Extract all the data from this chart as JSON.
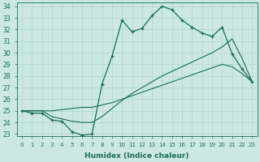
{
  "xlabel": "Humidex (Indice chaleur)",
  "bg_color": "#cce8e4",
  "grid_color": "#b0d4d0",
  "line_color": "#1a6b5a",
  "xlim": [
    -0.5,
    23.5
  ],
  "ylim": [
    22.8,
    34.3
  ],
  "xticks": [
    0,
    1,
    2,
    3,
    4,
    5,
    6,
    7,
    8,
    9,
    10,
    11,
    12,
    13,
    14,
    15,
    16,
    17,
    18,
    19,
    20,
    21,
    22,
    23
  ],
  "yticks": [
    23,
    24,
    25,
    26,
    27,
    28,
    29,
    30,
    31,
    32,
    33,
    34
  ],
  "line1_x": [
    0,
    1,
    2,
    3,
    4,
    5,
    6,
    7,
    8,
    9,
    10,
    11,
    12,
    13,
    14,
    15,
    16,
    17,
    18,
    19,
    20,
    21,
    22,
    23
  ],
  "line1_y": [
    25.0,
    24.8,
    24.8,
    24.2,
    24.1,
    23.2,
    22.9,
    23.0,
    27.3,
    29.7,
    32.8,
    31.8,
    32.1,
    33.2,
    34.0,
    33.7,
    32.8,
    32.2,
    31.7,
    31.4,
    32.2,
    29.9,
    28.6,
    27.5
  ],
  "line2_x": [
    0,
    1,
    2,
    3,
    4,
    5,
    6,
    7,
    8,
    9,
    10,
    11,
    12,
    13,
    14,
    15,
    16,
    17,
    18,
    19,
    20,
    21,
    22,
    23
  ],
  "line2_y": [
    25.0,
    25.0,
    25.0,
    24.5,
    24.3,
    24.1,
    24.0,
    24.0,
    24.5,
    25.2,
    25.9,
    26.5,
    27.0,
    27.5,
    28.0,
    28.4,
    28.8,
    29.2,
    29.6,
    30.0,
    30.5,
    31.2,
    29.5,
    27.5
  ],
  "line3_x": [
    0,
    1,
    2,
    3,
    4,
    5,
    6,
    7,
    8,
    9,
    10,
    11,
    12,
    13,
    14,
    15,
    16,
    17,
    18,
    19,
    20,
    21,
    22,
    23
  ],
  "line3_y": [
    25.0,
    25.0,
    25.0,
    25.0,
    25.1,
    25.2,
    25.3,
    25.3,
    25.5,
    25.7,
    26.0,
    26.3,
    26.6,
    26.9,
    27.2,
    27.5,
    27.8,
    28.1,
    28.4,
    28.7,
    29.0,
    28.8,
    28.2,
    27.5
  ]
}
